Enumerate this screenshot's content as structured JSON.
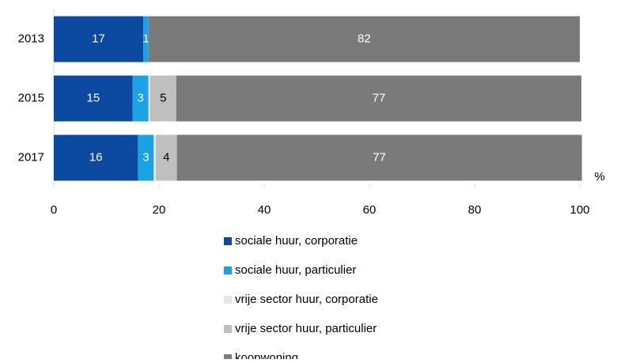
{
  "chart_data": {
    "type": "stacked_barh",
    "categories": [
      "2013",
      "2015",
      "2017"
    ],
    "series": [
      {
        "name": "sociale huur, corporatie",
        "color": "#0b4aa0",
        "label_color": "#ffffff",
        "values": [
          17,
          15,
          16
        ]
      },
      {
        "name": "sociale huur, particulier",
        "color": "#1ba1e6",
        "label_color": "#ffffff",
        "values": [
          1,
          3,
          3
        ]
      },
      {
        "name": "vrije sector huur, corporatie",
        "color": "#e6e6e6",
        "label_color": "#000000",
        "values": [
          null,
          0.3,
          0.4
        ]
      },
      {
        "name": "vrije sector huur, particulier",
        "color": "#bfbfbf",
        "label_color": "#000000",
        "values": [
          null,
          5,
          4
        ]
      },
      {
        "name": "koopwoning",
        "color": "#7a7a7a",
        "label_color": "#ffffff",
        "values": [
          82,
          77,
          77
        ]
      }
    ],
    "xlim": [
      0,
      100
    ],
    "xticks": [
      0,
      20,
      40,
      60,
      80,
      100
    ],
    "x_unit": "%",
    "grid": false
  }
}
